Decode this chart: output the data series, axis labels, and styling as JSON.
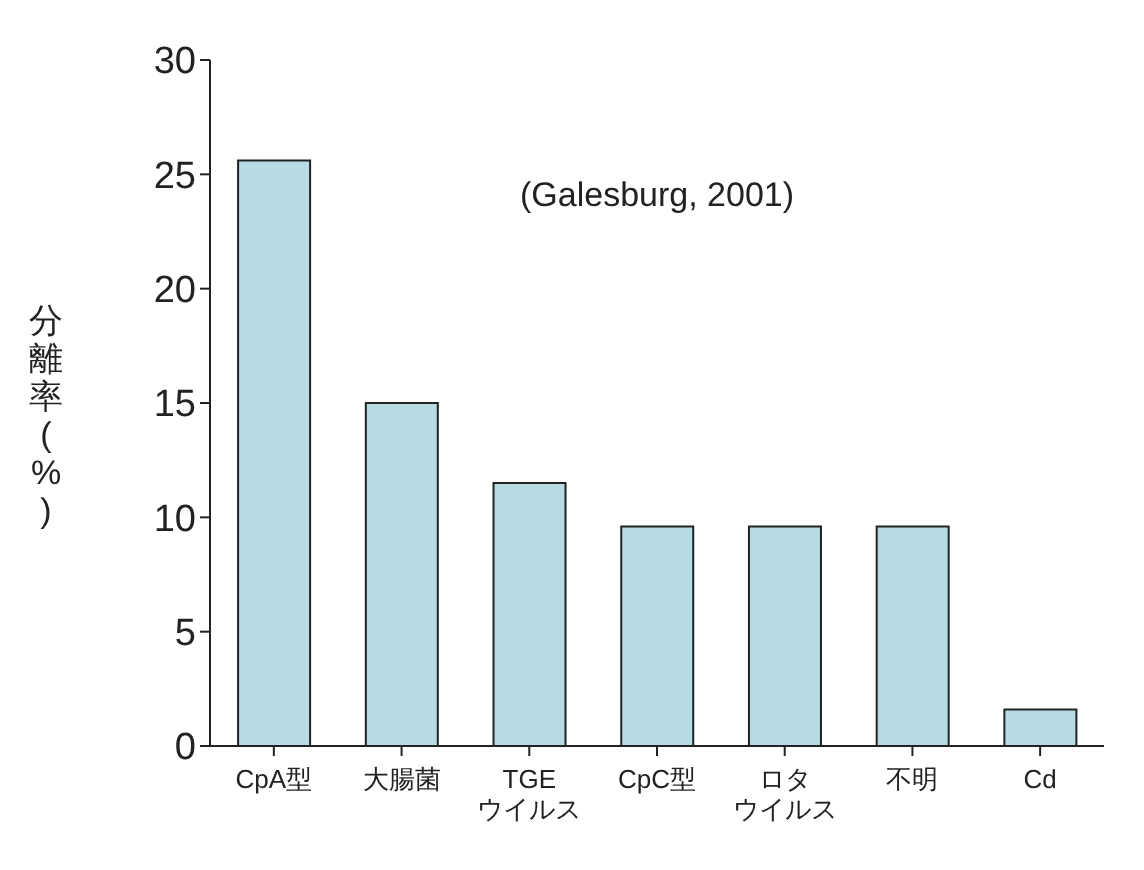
{
  "chart_data": {
    "type": "bar",
    "ylabel": "分離率(%)",
    "annotations": [
      "(Galesburg, 2001)"
    ],
    "categories": [
      "CpA型",
      "大腸菌",
      "TGEウイルス",
      "CpC型",
      "ロタウイルス",
      "不明",
      "Cd"
    ],
    "values": [
      25.6,
      15,
      11.5,
      9.6,
      9.6,
      9.6,
      1.6
    ],
    "color": "#b7dbe5",
    "ylim": [
      0,
      30
    ],
    "yticks": [
      0,
      5,
      10,
      15,
      20,
      25,
      30
    ]
  }
}
